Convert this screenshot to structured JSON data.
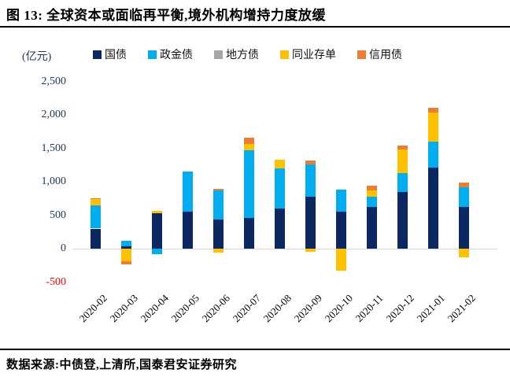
{
  "header": {
    "title": "图 13:  全球资本或面临再平衡,境外机构增持力度放缓"
  },
  "footer": {
    "source": "数据来源:中债登,上清所,国泰君安证券研究"
  },
  "chart_data": {
    "type": "bar",
    "subtype": "stacked",
    "unit_label": "(亿元)",
    "categories": [
      "2020-02",
      "2020-03",
      "2020-04",
      "2020-05",
      "2020-06",
      "2020-07",
      "2020-08",
      "2020-09",
      "2020-10",
      "2020-11",
      "2020-12",
      "2021-01",
      "2021-02"
    ],
    "series": [
      {
        "key": "treasury-bonds",
        "name": "国债",
        "color": "#0C2863",
        "values": [
          300,
          40,
          530,
          555,
          430,
          460,
          600,
          780,
          550,
          620,
          850,
          1215,
          620
        ]
      },
      {
        "key": "policy-financial-bonds",
        "name": "政金债",
        "color": "#00AEEF",
        "values": [
          345,
          75,
          -80,
          595,
          445,
          1005,
          600,
          480,
          330,
          155,
          275,
          385,
          300
        ]
      },
      {
        "key": "local-government-bonds",
        "name": "地方债",
        "color": "#A6A6A6",
        "values": [
          0,
          0,
          0,
          0,
          0,
          0,
          0,
          0,
          0,
          0,
          0,
          0,
          0
        ]
      },
      {
        "key": "interbank-ncd",
        "name": "同业存单",
        "color": "#FFC000",
        "values": [
          95,
          -190,
          30,
          0,
          -60,
          95,
          130,
          -50,
          -330,
          90,
          360,
          430,
          -130
        ]
      },
      {
        "key": "credit-bonds",
        "name": "信用债",
        "color": "#ED7D31",
        "values": [
          15,
          -50,
          0,
          0,
          25,
          95,
          0,
          60,
          0,
          75,
          60,
          80,
          70
        ]
      }
    ],
    "ylim": [
      -500,
      2500
    ],
    "yticks": [
      2500,
      2000,
      1500,
      1000,
      500,
      0,
      -500
    ],
    "ytick_color": "#1F3864",
    "negative_tick_color": "#FF0000",
    "grid": false,
    "legend_position": "top"
  }
}
